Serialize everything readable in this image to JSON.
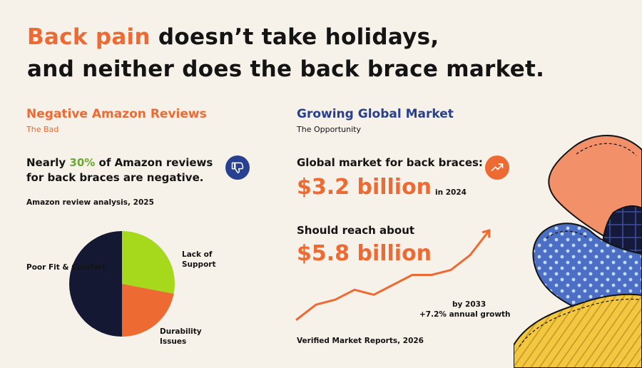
{
  "headline": {
    "accent": "Back pain",
    "rest_line1": " doesn’t take holidays,",
    "line2": "and neither does the back brace market."
  },
  "left": {
    "title": "Negative Amazon Reviews",
    "subtitle": "The Bad",
    "lead_before": "Nearly ",
    "lead_pct": "30%",
    "lead_after": " of Amazon reviews",
    "lead_line2": "for back braces are negative.",
    "icon": "thumbs-down-icon",
    "chart_caption": "Amazon review analysis, 2025"
  },
  "right": {
    "title": "Growing Global Market",
    "subtitle": "The Opportunity",
    "market_label": "Global market for back braces:",
    "market_value": "$3.2 billion",
    "market_year": "in 2024",
    "icon": "trend-up-icon",
    "forecast_label": "Should reach about",
    "forecast_value": "$5.8 billion",
    "forecast_year": "by 2033",
    "growth": "+7.2% annual growth",
    "source": "Verified Market Reports, 2026"
  },
  "colors": {
    "accent": "#ee6a33",
    "navy": "#27408f",
    "green": "#6aa82e",
    "pie_navy": "#141833",
    "pie_green": "#a6d81c",
    "pie_orange": "#ee6a33",
    "background": "#f6f1e9"
  },
  "chart_data": [
    {
      "type": "pie",
      "slices": [
        {
          "label": "Poor Fit & Comfort",
          "value": 50,
          "color": "#141833"
        },
        {
          "label": "Lack of Support",
          "value": 28,
          "color": "#a6d81c"
        },
        {
          "label": "Durability Issues",
          "value": 22,
          "color": "#ee6a33"
        }
      ]
    },
    {
      "type": "line",
      "series": [
        {
          "values": [
            0,
            3,
            4,
            6,
            5,
            7,
            9,
            9,
            10,
            13,
            18
          ]
        }
      ]
    }
  ]
}
